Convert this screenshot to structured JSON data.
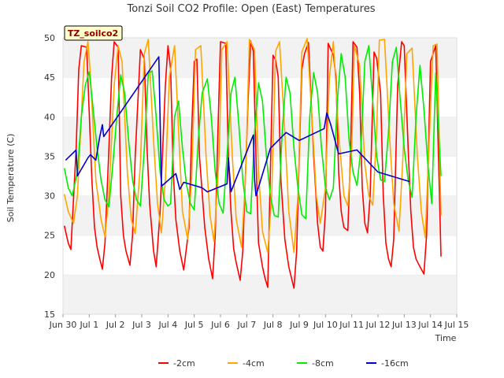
{
  "chart_data": {
    "type": "line",
    "title": "Tonzi Soil CO2 Profile: Open (East) Temperatures",
    "xlabel": "Time",
    "ylabel": "Soil Temperature (C)",
    "annotation": "TZ_soilco2",
    "xlim": [
      0,
      15
    ],
    "ylim": [
      15,
      50
    ],
    "x_tick_values": [
      0,
      1,
      2,
      3,
      4,
      5,
      6,
      7,
      8,
      9,
      10,
      11,
      12,
      13,
      14,
      15
    ],
    "x_tick_labels": [
      "Jun 30",
      "Jul 1",
      "Jul 2",
      "Jul 3",
      "Jul 4",
      "Jul 5",
      "Jul 6",
      "Jul 7",
      "Jul 8",
      "Jul 9",
      "Jul 10",
      "Jul 11",
      "Jul 12",
      "Jul 13",
      "Jul 14",
      "Jul 15"
    ],
    "y_ticks": [
      15,
      20,
      25,
      30,
      35,
      40,
      45,
      50
    ],
    "grid": "horizontal bands",
    "legend_position": "bottom",
    "series": [
      {
        "name": "-2cm",
        "color": "#ff0000",
        "x": [
          0.05,
          0.2,
          0.3,
          0.5,
          0.6,
          0.7,
          0.9,
          1.1,
          1.2,
          1.3,
          1.4,
          1.5,
          1.6,
          1.75,
          1.85,
          1.95,
          2.1,
          2.2,
          2.3,
          2.4,
          2.55,
          2.65,
          2.75,
          2.95,
          3.1,
          3.2,
          3.3,
          3.45,
          3.55,
          3.7,
          3.9,
          4.0,
          4.1,
          4.2,
          4.3,
          4.45,
          4.6,
          4.8,
          4.9,
          5.0,
          5.1,
          5.2,
          5.4,
          5.55,
          5.7,
          5.8,
          5.9,
          6.0,
          6.2,
          6.3,
          6.4,
          6.5,
          6.6,
          6.75,
          6.85,
          7.05,
          7.15,
          7.25,
          7.35,
          7.45,
          7.6,
          7.7,
          7.8,
          8.0,
          8.1,
          8.2,
          8.3,
          8.45,
          8.6,
          8.8,
          8.9,
          9.0,
          9.1,
          9.2,
          9.35,
          9.55,
          9.7,
          9.8,
          9.9,
          10.0,
          10.1,
          10.3,
          10.4,
          10.5,
          10.6,
          10.7,
          10.85,
          10.95,
          11.05,
          11.2,
          11.3,
          11.4,
          11.5,
          11.6,
          11.7,
          11.85,
          11.95,
          12.1,
          12.2,
          12.3,
          12.4,
          12.5,
          12.6,
          12.75,
          12.9,
          13.0,
          13.15,
          13.25,
          13.35,
          13.45,
          13.6,
          13.75,
          13.85,
          14.0,
          14.2,
          14.4
        ],
        "y": [
          26.2,
          24.0,
          23.2,
          36.0,
          46.0,
          49.0,
          48.8,
          32.0,
          26.0,
          23.5,
          22.0,
          20.7,
          24.0,
          36.0,
          45.0,
          49.5,
          48.8,
          30.0,
          25.0,
          23.0,
          21.2,
          25.0,
          35.0,
          48.5,
          47.3,
          36.0,
          29.0,
          23.0,
          21.0,
          28.0,
          44.0,
          49.0,
          46.0,
          33.0,
          27.0,
          23.0,
          20.6,
          26.0,
          38.0,
          47.0,
          47.3,
          35.0,
          26.0,
          22.0,
          19.5,
          25.0,
          38.0,
          49.5,
          49.3,
          35.0,
          28.0,
          23.3,
          21.5,
          19.3,
          23.0,
          42.0,
          49.6,
          48.3,
          35.0,
          24.0,
          21.0,
          19.5,
          18.4,
          47.8,
          47.2,
          45.0,
          32.0,
          24.5,
          21.0,
          18.3,
          23.0,
          35.0,
          46.0,
          48.0,
          49.4,
          35.0,
          26.5,
          23.5,
          23.0,
          28.0,
          49.3,
          47.8,
          45.0,
          33.0,
          28.0,
          26.0,
          25.6,
          35.0,
          49.5,
          48.8,
          43.0,
          31.0,
          26.5,
          25.3,
          30.0,
          48.2,
          47.4,
          43.0,
          30.0,
          24.0,
          22.0,
          21.0,
          24.5,
          44.0,
          49.5,
          49.0,
          36.0,
          28.0,
          23.5,
          22.0,
          21.0,
          20.1,
          25.0,
          47.0,
          49.0,
          22.3
        ]
      },
      {
        "name": "-4cm",
        "color": "#ffa500",
        "x": [
          0.05,
          0.2,
          0.4,
          0.55,
          0.7,
          0.8,
          0.95,
          1.05,
          1.25,
          1.45,
          1.6,
          1.75,
          1.95,
          2.1,
          2.25,
          2.45,
          2.6,
          2.75,
          2.95,
          3.1,
          3.25,
          3.45,
          3.6,
          3.75,
          3.9,
          4.05,
          4.25,
          4.45,
          4.55,
          4.75,
          4.9,
          5.05,
          5.25,
          5.45,
          5.6,
          5.75,
          5.95,
          6.05,
          6.25,
          6.45,
          6.6,
          6.8,
          6.95,
          7.1,
          7.3,
          7.45,
          7.6,
          7.8,
          7.95,
          8.1,
          8.25,
          8.45,
          8.6,
          8.8,
          8.95,
          9.1,
          9.3,
          9.5,
          9.65,
          9.8,
          10.0,
          10.15,
          10.3,
          10.5,
          10.7,
          10.85,
          11.0,
          11.1,
          11.3,
          11.5,
          11.65,
          11.8,
          11.95,
          12.05,
          12.25,
          12.45,
          12.6,
          12.8,
          12.95,
          13.1,
          13.3,
          13.5,
          13.65,
          13.8,
          13.95,
          14.1,
          14.25,
          14.4
        ],
        "y": [
          30.2,
          28.0,
          26.5,
          30.0,
          40.0,
          47.0,
          49.5,
          45.0,
          32.0,
          27.0,
          24.8,
          30.0,
          44.0,
          49.0,
          47.0,
          33.0,
          27.0,
          25.2,
          34.0,
          48.0,
          49.8,
          37.0,
          29.0,
          25.3,
          32.0,
          45.0,
          49.0,
          35.0,
          28.0,
          24.5,
          32.0,
          48.5,
          49.0,
          35.0,
          27.5,
          24.2,
          35.0,
          48.5,
          49.5,
          35.0,
          27.0,
          23.5,
          32.0,
          49.8,
          48.5,
          33.0,
          25.5,
          22.8,
          30.0,
          48.3,
          49.5,
          38.0,
          28.0,
          22.8,
          30.0,
          48.2,
          49.9,
          39.0,
          30.0,
          26.5,
          31.0,
          45.0,
          49.5,
          38.0,
          30.0,
          28.7,
          36.0,
          49.0,
          46.5,
          34.0,
          30.0,
          28.8,
          38.0,
          49.7,
          49.8,
          37.0,
          29.0,
          25.5,
          35.0,
          48.0,
          48.7,
          35.0,
          28.0,
          24.7,
          37.0,
          49.0,
          49.2,
          27.5
        ]
      },
      {
        "name": "-8cm",
        "color": "#00ee00",
        "x": [
          0.05,
          0.2,
          0.35,
          0.55,
          0.7,
          0.85,
          1.0,
          1.15,
          1.3,
          1.45,
          1.6,
          1.75,
          1.9,
          2.05,
          2.2,
          2.35,
          2.5,
          2.65,
          2.8,
          2.95,
          3.1,
          3.25,
          3.4,
          3.55,
          3.7,
          3.85,
          4.0,
          4.1,
          4.25,
          4.4,
          4.55,
          4.7,
          4.85,
          5.0,
          5.15,
          5.3,
          5.5,
          5.65,
          5.8,
          5.95,
          6.1,
          6.25,
          6.4,
          6.55,
          6.7,
          6.85,
          7.0,
          7.15,
          7.3,
          7.45,
          7.6,
          7.75,
          7.9,
          8.05,
          8.2,
          8.35,
          8.5,
          8.65,
          8.8,
          8.95,
          9.1,
          9.25,
          9.4,
          9.55,
          9.7,
          9.85,
          10.0,
          10.15,
          10.3,
          10.45,
          10.6,
          10.75,
          10.9,
          11.05,
          11.2,
          11.35,
          11.5,
          11.65,
          11.8,
          11.95,
          12.1,
          12.25,
          12.4,
          12.55,
          12.7,
          12.85,
          13.0,
          13.15,
          13.3,
          13.45,
          13.6,
          13.75,
          13.9,
          14.05,
          14.2,
          14.4
        ],
        "y": [
          33.5,
          31.0,
          30.0,
          33.0,
          40.0,
          44.0,
          45.7,
          41.0,
          36.0,
          32.0,
          29.5,
          28.6,
          34.0,
          40.0,
          45.3,
          43.0,
          37.0,
          32.0,
          29.5,
          28.7,
          36.0,
          45.5,
          45.8,
          40.0,
          33.0,
          29.5,
          28.7,
          29.0,
          40.0,
          42.0,
          36.0,
          31.5,
          29.0,
          28.2,
          37.0,
          43.0,
          44.8,
          40.0,
          33.0,
          29.0,
          27.8,
          35.0,
          43.0,
          45.0,
          39.0,
          32.0,
          28.0,
          27.7,
          38.0,
          44.3,
          42.0,
          35.0,
          30.0,
          27.5,
          27.3,
          38.0,
          45.0,
          43.0,
          36.0,
          31.0,
          27.6,
          27.1,
          40.0,
          45.6,
          43.0,
          36.0,
          31.0,
          29.5,
          31.0,
          42.0,
          48.0,
          45.0,
          37.0,
          33.0,
          31.3,
          36.0,
          47.0,
          49.0,
          42.0,
          35.0,
          32.0,
          31.8,
          38.0,
          47.0,
          48.8,
          42.0,
          36.0,
          32.0,
          29.8,
          40.0,
          46.5,
          41.0,
          34.0,
          29.0,
          45.5,
          32.5
        ]
      },
      {
        "name": "-16cm",
        "color": "#0000cc",
        "x": [
          0.1,
          0.5,
          0.55,
          0.95,
          1.05,
          1.25,
          1.4,
          1.5,
          1.55,
          1.7,
          3.65,
          3.75,
          4.3,
          4.45,
          4.6,
          5.3,
          5.5,
          6.25,
          6.3,
          6.4,
          7.25,
          7.3,
          7.35,
          7.9,
          8.5,
          9.0,
          9.95,
          10.05,
          10.2,
          10.5,
          11.2,
          12.0,
          13.2
        ],
        "y": [
          34.5,
          35.8,
          32.5,
          34.8,
          35.2,
          34.5,
          37.5,
          39.0,
          37.5,
          38.2,
          47.6,
          31.2,
          32.8,
          30.8,
          31.7,
          31.0,
          30.5,
          31.5,
          34.8,
          30.5,
          37.7,
          32.0,
          30.0,
          36.0,
          38.0,
          37.0,
          38.5,
          40.5,
          39.0,
          35.3,
          35.8,
          33.0,
          31.8
        ]
      }
    ]
  }
}
